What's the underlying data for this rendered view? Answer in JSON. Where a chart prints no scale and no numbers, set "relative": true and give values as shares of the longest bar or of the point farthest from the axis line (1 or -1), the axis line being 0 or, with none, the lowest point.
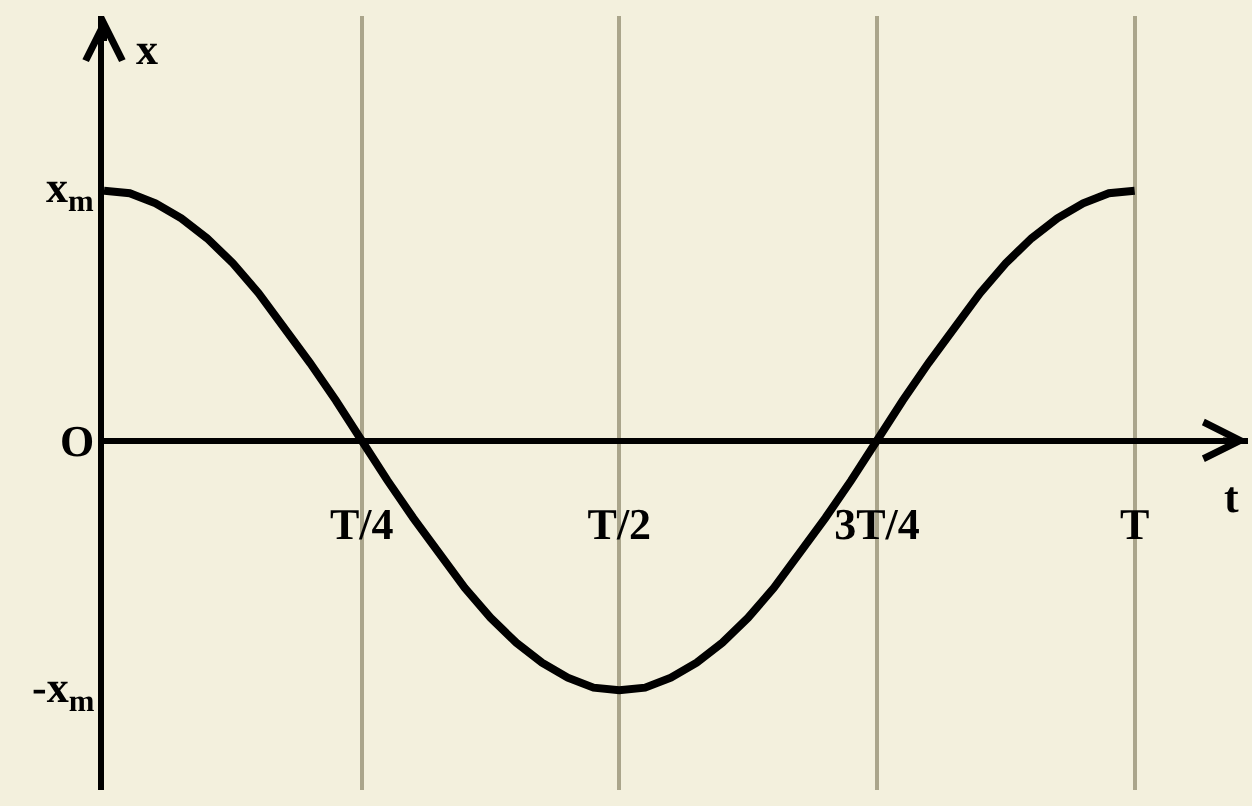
{
  "chart_data": {
    "type": "line",
    "relative": true,
    "xlabel": "t",
    "ylabel": "x",
    "categories": [
      null,
      null,
      null,
      null,
      null,
      null,
      null,
      null,
      null,
      null,
      "T/4",
      null,
      null,
      null,
      null,
      null,
      null,
      null,
      null,
      null,
      "T/2",
      null,
      null,
      null,
      null,
      null,
      null,
      null,
      null,
      null,
      "3T/4",
      null,
      null,
      null,
      null,
      null,
      null,
      null,
      null,
      null,
      "T"
    ],
    "series": [
      {
        "color": "#000000",
        "values": [
          1,
          0.99,
          0.95,
          0.89,
          0.81,
          0.71,
          0.59,
          0.45,
          0.31,
          0.16,
          0,
          -0.16,
          -0.31,
          -0.45,
          -0.59,
          -0.71,
          -0.81,
          -0.89,
          -0.95,
          -0.99,
          -1,
          -0.99,
          -0.95,
          -0.89,
          -0.81,
          -0.71,
          -0.59,
          -0.45,
          -0.31,
          -0.16,
          0,
          0.16,
          0.31,
          0.45,
          0.59,
          0.71,
          0.81,
          0.89,
          0.95,
          0.99,
          1
        ]
      }
    ],
    "annotations": [
      "x$_{m}$",
      "O",
      "-x$_{m}$"
    ],
    "grid": "x",
    "line_style": "solid"
  }
}
